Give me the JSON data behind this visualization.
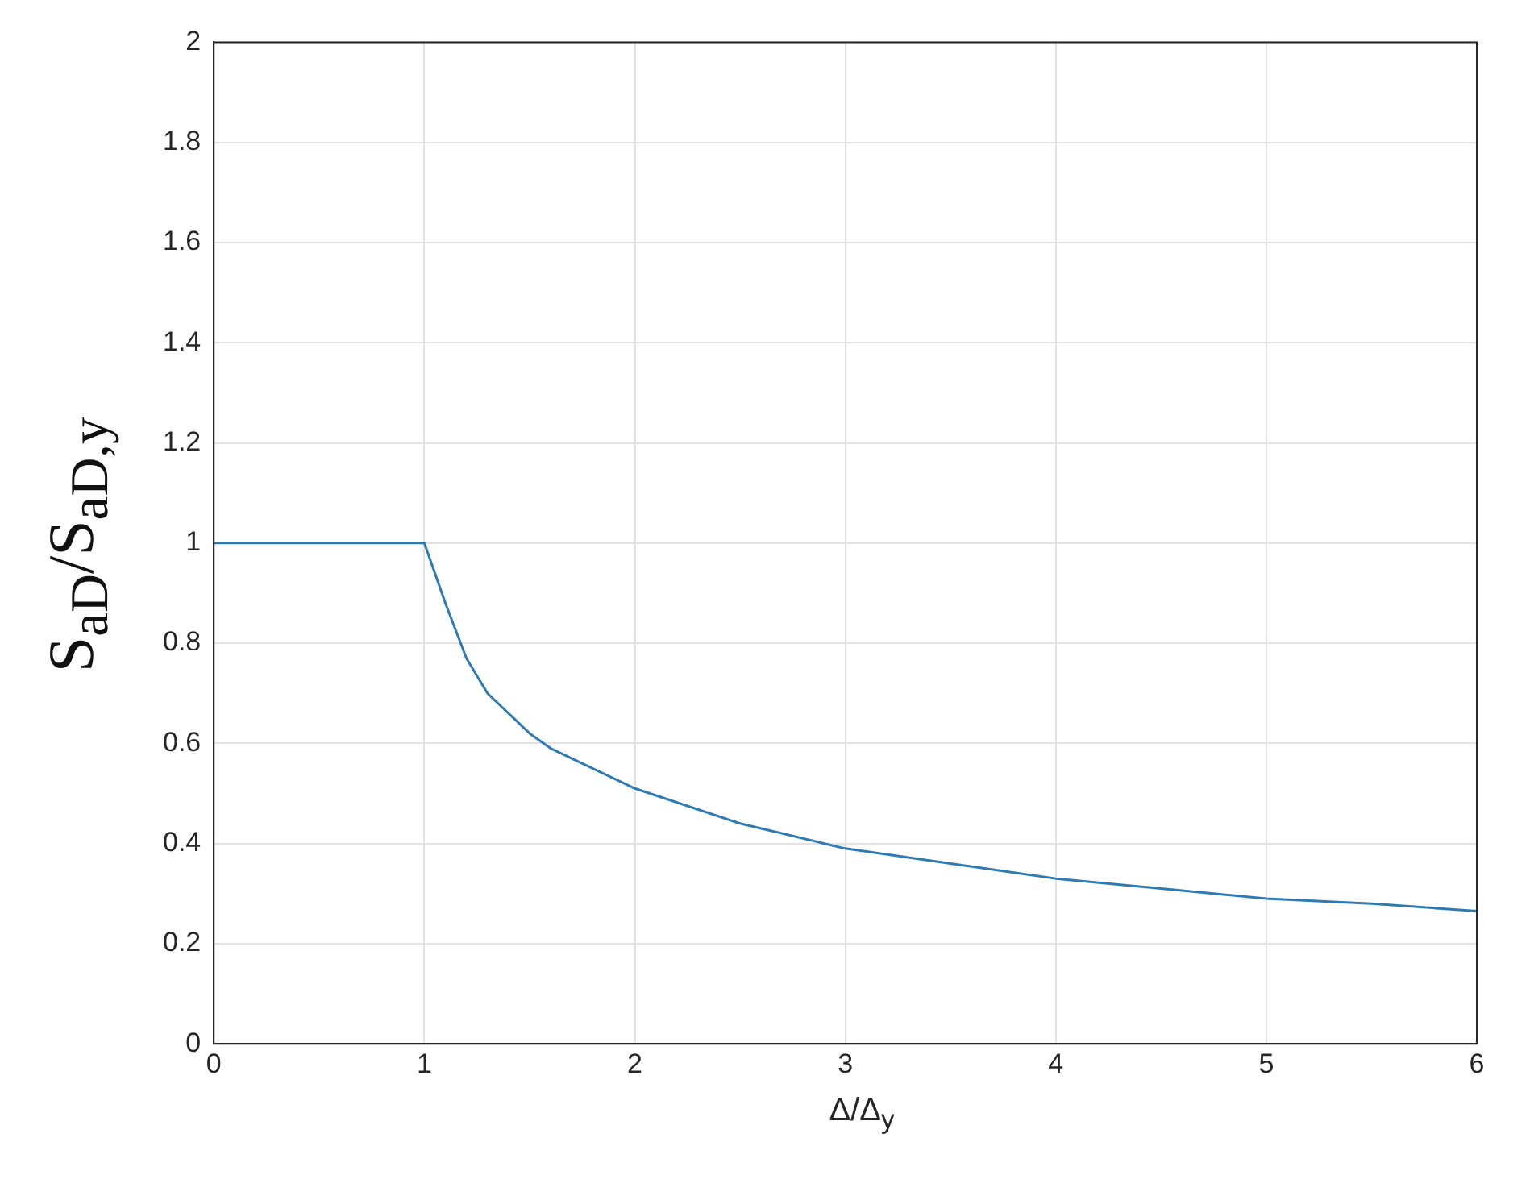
{
  "chart_data": {
    "type": "line",
    "xlabel": "Δ/Δ$_{y}$",
    "ylabel": "S$_{aD}$/S$_{aD,y}$",
    "x": [
      0,
      0.5,
      1,
      1.1,
      1.2,
      1.3,
      1.5,
      1.6,
      2,
      2.5,
      3,
      3.5,
      4,
      4.5,
      5,
      5.5,
      6
    ],
    "series": [
      {
        "color": "#2e7bb4",
        "values": [
          1,
          1,
          1,
          0.88,
          0.77,
          0.7,
          0.62,
          0.59,
          0.51,
          0.44,
          0.39,
          0.36,
          0.33,
          0.31,
          0.29,
          0.28,
          0.265
        ]
      }
    ],
    "xlim": [
      0,
      6
    ],
    "xticks": [
      0,
      1,
      2,
      3,
      4,
      5,
      6
    ],
    "ylim": [
      0,
      2
    ],
    "yticks": [
      0,
      0.2,
      0.4,
      0.6,
      0.8,
      1,
      1.2,
      1.4,
      1.6,
      1.8,
      2
    ],
    "grid": true,
    "legend": false,
    "marker": "none",
    "line_style": "solid"
  }
}
